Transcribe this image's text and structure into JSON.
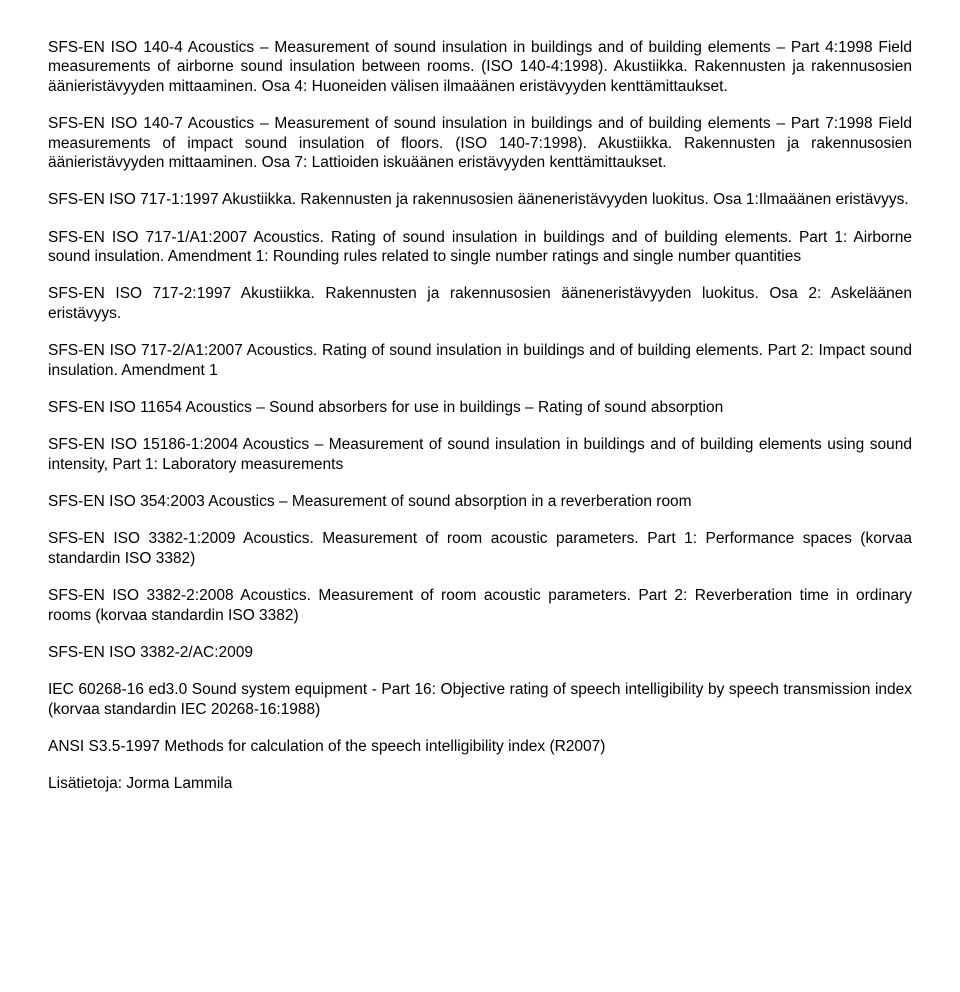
{
  "paragraphs": [
    "SFS-EN ISO 140-4 Acoustics – Measurement of sound insulation in buildings and of building elements – Part 4:1998 Field measurements of airborne sound insulation between rooms. (ISO 140-4:1998). Akustiikka. Rakennusten ja rakennusosien äänieristävyyden mittaaminen. Osa 4: Huoneiden välisen ilmaäänen eristävyyden kenttämittaukset.",
    "SFS-EN ISO 140-7 Acoustics – Measurement of sound insulation in buildings and of building elements – Part 7:1998 Field measurements of impact sound insulation of floors. (ISO 140-7:1998). Akustiikka. Rakennusten ja rakennusosien äänieristävyyden mittaaminen. Osa 7: Lattioiden iskuäänen eristävyyden kenttämittaukset.",
    "SFS-EN ISO 717-1:1997 Akustiikka. Rakennusten ja rakennusosien ääneneristävyyden luokitus. Osa 1:Ilmaäänen eristävyys.",
    "SFS-EN ISO 717-1/A1:2007 Acoustics. Rating of sound insulation in buildings and of building elements. Part 1: Airborne sound insulation. Amendment 1: Rounding rules related to single number ratings and single number quantities",
    "SFS-EN ISO 717-2:1997 Akustiikka. Rakennusten ja rakennusosien ääneneristävyyden luokitus. Osa 2: Askeläänen eristävyys.",
    "SFS-EN ISO 717-2/A1:2007 Acoustics. Rating of sound insulation in buildings and of building elements. Part 2: Impact sound insulation. Amendment 1",
    "SFS-EN ISO 11654 Acoustics – Sound absorbers for use in buildings – Rating of sound absorption",
    "SFS-EN ISO 15186-1:2004 Acoustics – Measurement of sound insulation in buildings and of building elements using sound intensity, Part 1: Laboratory measurements",
    "SFS-EN ISO 354:2003 Acoustics – Measurement of sound absorption in a reverberation room",
    "SFS-EN ISO 3382-1:2009 Acoustics. Measurement of room acoustic parameters. Part 1: Performance spaces (korvaa standardin ISO 3382)",
    "SFS-EN ISO 3382-2:2008 Acoustics. Measurement of room acoustic parameters. Part 2: Reverberation time in ordinary rooms (korvaa standardin ISO 3382)",
    "SFS-EN ISO 3382-2/AC:2009",
    "IEC 60268-16 ed3.0 Sound system equipment - Part 16: Objective rating of speech intelligibility by speech transmission index (korvaa standardin IEC 20268-16:1988)",
    "ANSI S3.5-1997 Methods for calculation of the speech intelligibility index (R2007)",
    "Lisätietoja: Jorma Lammila"
  ]
}
